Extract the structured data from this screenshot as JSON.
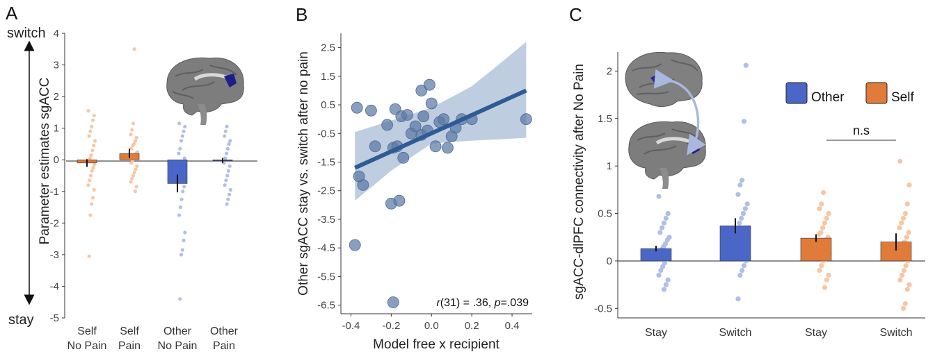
{
  "colors": {
    "self": "#e07b39",
    "self_light": "#f6c7a6",
    "other": "#4a67c8",
    "other_light": "#b0bfe6",
    "scatter": "#5c7aa6",
    "regression": "#2d5b94",
    "ci_band": "#b7c8dc",
    "brain": "#7b7b7b",
    "roi": "#1d1d8c"
  },
  "icons": [
    "brain-illustration-a",
    "brain-illustration-c-top",
    "brain-illustration-c-bottom",
    "double-arrow-icon"
  ],
  "chart_data": [
    {
      "panel": "A",
      "type": "bar",
      "ylabel": "Parameter estimates sgACC",
      "ylim": [
        -5,
        4
      ],
      "yticks": [
        "4",
        "3",
        "2",
        "1",
        "0",
        "-1",
        "-2",
        "-3",
        "-4",
        "-5"
      ],
      "arrow_top_label": "switch",
      "arrow_bottom_label": "stay",
      "categories": [
        {
          "line1": "Self",
          "line2": "No Pain"
        },
        {
          "line1": "Self",
          "line2": "Pain"
        },
        {
          "line1": "Other",
          "line2": "No Pain"
        },
        {
          "line1": "Other",
          "line2": "Pain"
        }
      ],
      "groups": [
        "Self",
        "Self",
        "Other",
        "Other"
      ],
      "values": [
        -0.1,
        0.2,
        -0.75,
        -0.02
      ],
      "errors": [
        0.12,
        0.15,
        0.28,
        0.08
      ],
      "points": [
        [
          1.55,
          1.4,
          1.25,
          1.05,
          0.9,
          0.75,
          0.6,
          0.45,
          0.3,
          0.15,
          0.05,
          -0.05,
          -0.15,
          -0.25,
          -0.35,
          -0.5,
          -0.65,
          -0.8,
          -0.95,
          -1.2,
          -1.4,
          -1.75,
          -3.05
        ],
        [
          3.5,
          1.15,
          0.95,
          0.8,
          0.7,
          0.6,
          0.5,
          0.45,
          0.35,
          0.25,
          0.2,
          0.1,
          0.05,
          -0.05,
          -0.1,
          -0.2,
          -0.3,
          -0.4,
          -0.5,
          -0.6,
          -0.7,
          -0.85,
          -1.0
        ],
        [
          1.15,
          1.05,
          0.9,
          0.75,
          0.6,
          0.35,
          0.2,
          0.05,
          -0.1,
          -0.25,
          -0.4,
          -0.55,
          -0.7,
          -0.85,
          -1.0,
          -1.25,
          -1.5,
          -1.75,
          -2.3,
          -2.55,
          -2.85,
          -3.0,
          -4.4
        ],
        [
          1.95,
          1.05,
          0.9,
          0.75,
          0.6,
          0.5,
          0.35,
          0.2,
          0.05,
          -0.1,
          -0.2,
          -0.35,
          -0.5,
          -0.65,
          -0.8,
          -0.95,
          -1.1,
          -1.25,
          -1.4
        ]
      ]
    },
    {
      "panel": "B",
      "type": "scatter",
      "xlabel": "Model free x recipient",
      "ylabel": "Other sgACC stay vs. switch after no pain",
      "xlim": [
        -0.45,
        0.5
      ],
      "ylim": [
        -6.8,
        3.0
      ],
      "xticks": [
        "-0.4",
        "-0.2",
        "0.0",
        "0.2",
        "0.4"
      ],
      "yticks": [
        "2.5",
        "1.5",
        "0.5",
        "-0.5",
        "-1.5",
        "-2.5",
        "-3.5",
        "-4.5",
        "-5.5",
        "-6.5"
      ],
      "annotation": {
        "r": "r",
        "rest1": "(31) = .36, ",
        "p": "p",
        "rest2": "=.039"
      },
      "regression": {
        "x": [
          -0.38,
          0.47
        ],
        "y": [
          -1.7,
          1.0
        ]
      },
      "ci_band": {
        "x": [
          -0.38,
          -0.2,
          0.0,
          0.2,
          0.35,
          0.47
        ],
        "upper": [
          -0.45,
          -0.05,
          0.4,
          1.15,
          2.0,
          2.7
        ],
        "lower": [
          -2.85,
          -1.8,
          -0.85,
          -0.75,
          -0.7,
          -0.65
        ]
      },
      "x": [
        -0.37,
        -0.34,
        -0.3,
        -0.18,
        -0.15,
        -0.12,
        -0.05,
        -0.04,
        -0.01,
        0.0,
        -0.28,
        -0.22,
        -0.19,
        -0.17,
        -0.14,
        -0.1,
        -0.08,
        -0.05,
        -0.02,
        0.02,
        0.04,
        0.06,
        0.08,
        0.1,
        0.12,
        0.15,
        0.2,
        0.47,
        -0.36,
        -0.2,
        -0.16,
        -0.38,
        -0.19
      ],
      "y": [
        0.4,
        -2.3,
        0.3,
        0.35,
        0.1,
        0.15,
        1.0,
        0.1,
        1.2,
        0.55,
        -0.95,
        -0.2,
        -1.0,
        -0.95,
        -1.35,
        -0.5,
        -0.25,
        -0.55,
        -0.4,
        -0.95,
        -0.1,
        0.0,
        -1.0,
        -0.6,
        -0.3,
        0.0,
        0.0,
        0.0,
        -2.0,
        -2.95,
        -2.85,
        -4.4,
        -6.4
      ]
    },
    {
      "panel": "C",
      "type": "bar",
      "ylabel": "sgACC-dlPFC connectivity after No Pain",
      "ylim": [
        -0.6,
        2.2
      ],
      "yticks": [
        "2",
        "1.5",
        "1",
        "0.5",
        "0",
        "-0.5"
      ],
      "categories": [
        "Stay",
        "Switch",
        "Stay",
        "Switch"
      ],
      "groups": [
        "Other",
        "Other",
        "Self",
        "Self"
      ],
      "values": [
        0.13,
        0.37,
        0.24,
        0.2
      ],
      "errors": [
        0.03,
        0.08,
        0.04,
        0.09
      ],
      "legend": [
        {
          "name": "Other"
        },
        {
          "name": "Self"
        }
      ],
      "significance_label": "n.s",
      "points": [
        [
          0.68,
          0.5,
          0.45,
          0.4,
          0.35,
          0.3,
          0.25,
          0.22,
          0.18,
          0.15,
          0.12,
          0.08,
          0.05,
          0.02,
          -0.02,
          -0.06,
          -0.1,
          -0.15,
          -0.2,
          -0.25,
          -0.3
        ],
        [
          2.06,
          1.47,
          0.85,
          0.8,
          0.7,
          0.6,
          0.55,
          0.5,
          0.45,
          0.4,
          0.35,
          0.3,
          0.25,
          0.2,
          0.15,
          0.1,
          0.05,
          0.0,
          -0.05,
          -0.1,
          -0.15,
          -0.4
        ],
        [
          0.72,
          0.6,
          0.55,
          0.5,
          0.45,
          0.4,
          0.35,
          0.3,
          0.28,
          0.25,
          0.2,
          0.18,
          0.15,
          0.1,
          0.08,
          0.05,
          0.02,
          0.0,
          -0.05,
          -0.1,
          -0.15,
          -0.2,
          -0.28
        ],
        [
          1.05,
          0.8,
          0.6,
          0.5,
          0.45,
          0.4,
          0.35,
          0.3,
          0.25,
          0.2,
          0.15,
          0.1,
          0.05,
          0.0,
          -0.05,
          -0.1,
          -0.15,
          -0.2,
          -0.25,
          -0.3,
          -0.45,
          -0.5
        ]
      ]
    }
  ],
  "panel_letters": [
    "A",
    "B",
    "C"
  ]
}
